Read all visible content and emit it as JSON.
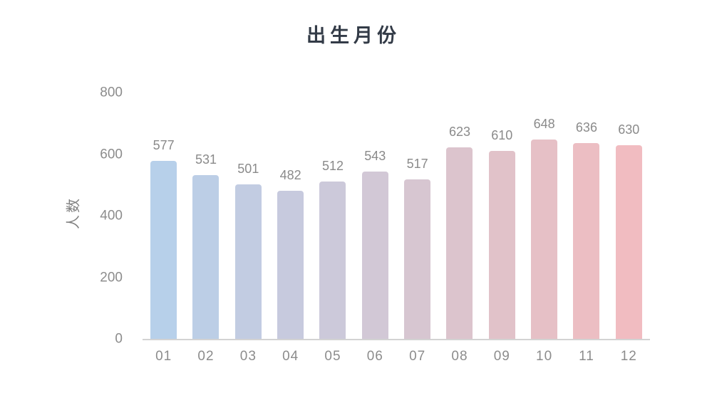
{
  "chart_data": {
    "type": "bar",
    "title": "出生月份",
    "xlabel": "",
    "ylabel": "人数",
    "categories": [
      "01",
      "02",
      "03",
      "04",
      "05",
      "06",
      "07",
      "08",
      "09",
      "10",
      "11",
      "12"
    ],
    "values": [
      577,
      531,
      501,
      482,
      512,
      543,
      517,
      623,
      610,
      648,
      636,
      630
    ],
    "ylim": [
      0,
      800
    ],
    "yticks": [
      0,
      200,
      400,
      600,
      800
    ],
    "grid": false,
    "legend": "none",
    "data_labels_shown": true,
    "bar_colors": [
      "#b7d0ea",
      "#bccee6",
      "#c2cce2",
      "#c7cade",
      "#ccc9da",
      "#d2c8d6",
      "#d7c6d1",
      "#dcc4cd",
      "#e1c2c9",
      "#e6c0c6",
      "#ecbec3",
      "#f1bcc1"
    ],
    "colors": {
      "title": "#333b47",
      "axis_tick_labels": "#8c8c8c",
      "data_labels": "#8a8a8a",
      "x_labels": "#8c8c8c",
      "y_axis_title": "#808080",
      "axis_line": "#d3d3d3",
      "background": "#ffffff"
    }
  }
}
